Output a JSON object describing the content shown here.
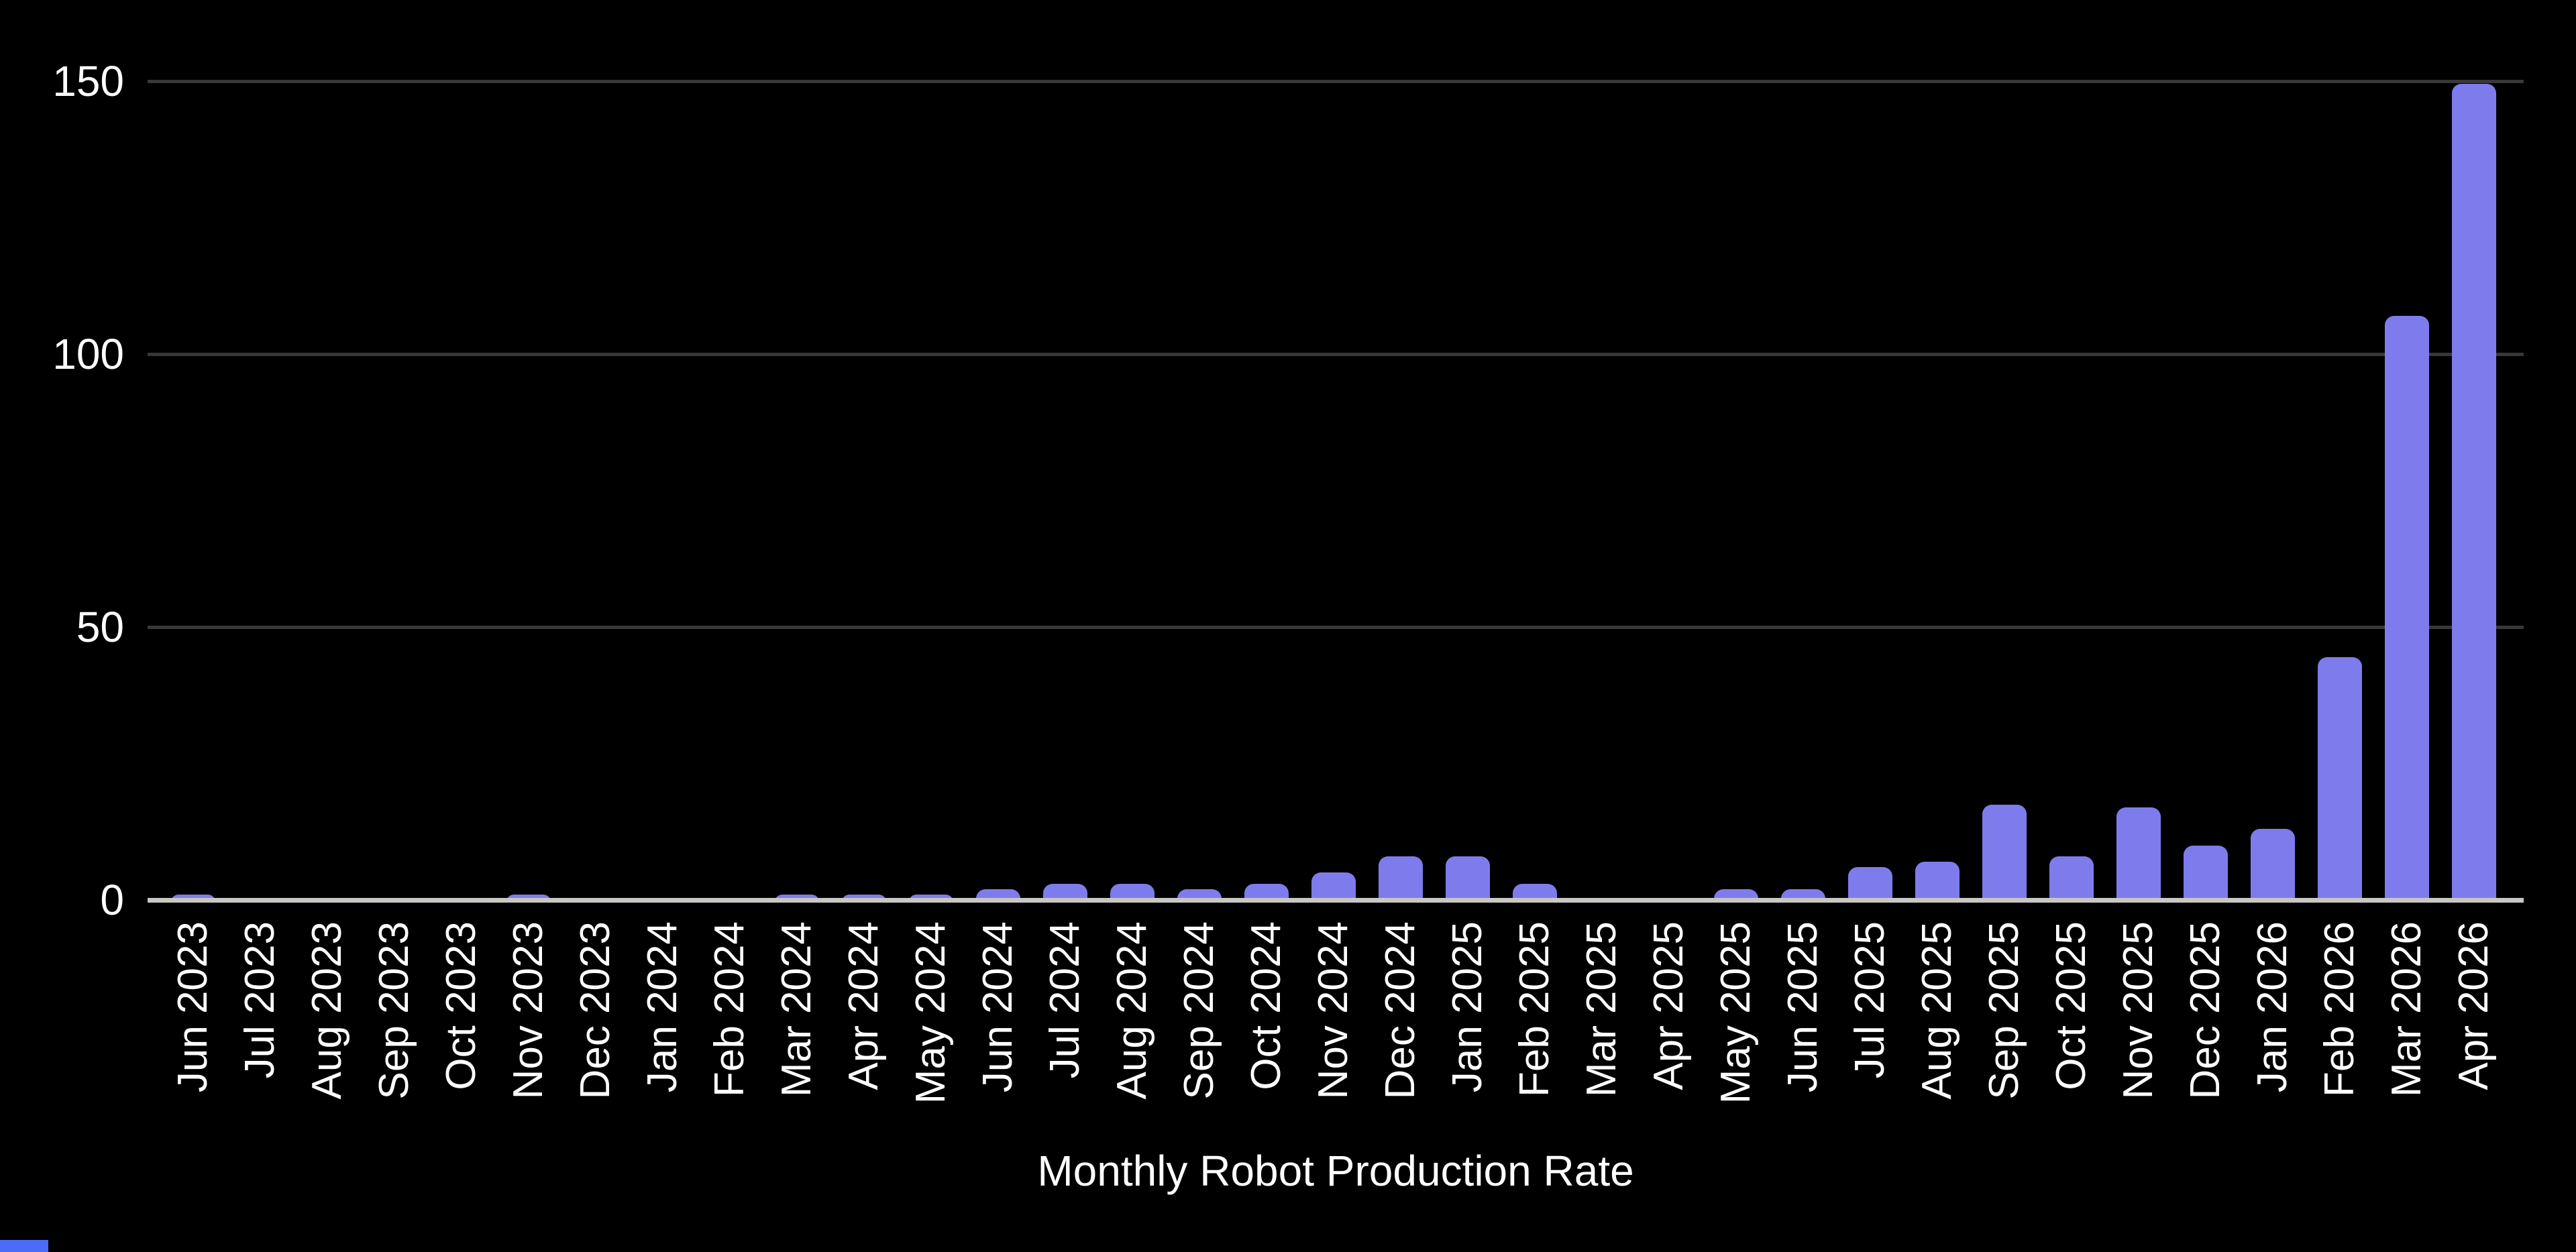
{
  "chart_data": {
    "type": "bar",
    "title": "Monthly Robot Production Rate",
    "categories": [
      "Jun 2023",
      "Jul 2023",
      "Aug 2023",
      "Sep 2023",
      "Oct 2023",
      "Nov 2023",
      "Dec 2023",
      "Jan 2024",
      "Feb 2024",
      "Mar 2024",
      "Apr 2024",
      "May 2024",
      "Jun 2024",
      "Jul 2024",
      "Aug 2024",
      "Sep 2024",
      "Oct 2024",
      "Nov 2024",
      "Dec 2024",
      "Jan 2025",
      "Feb 2025",
      "Mar 2025",
      "Apr 2025",
      "May 2025",
      "Jun 2025",
      "Jul 2025",
      "Aug 2025",
      "Sep 2025",
      "Oct 2025",
      "Nov 2025",
      "Dec 2025",
      "Jan 2026",
      "Feb 2026",
      "Mar 2026",
      "Apr 2026"
    ],
    "values": [
      1,
      0,
      0,
      0,
      0,
      1,
      0,
      0,
      0,
      1,
      1,
      1,
      2,
      3,
      3,
      2,
      3,
      5,
      8,
      8,
      3,
      0,
      0,
      2,
      2,
      6,
      7,
      17.5,
      8,
      17,
      10,
      13,
      44.5,
      107,
      149.5
    ],
    "xlabel": "",
    "ylabel": "",
    "ylim": [
      0,
      150
    ],
    "yticks": [
      0,
      50,
      100,
      150
    ],
    "ytick_labels": [
      "0",
      "50",
      "100",
      "150"
    ],
    "grid": true,
    "legend": "none",
    "colors": {
      "background": "#000000",
      "bar": "#7E7CEC",
      "gridline": "#383838",
      "axis_line": "#C9C7C4",
      "text": "#FFFFFF",
      "corner_strip": "#4A6CF7"
    }
  }
}
